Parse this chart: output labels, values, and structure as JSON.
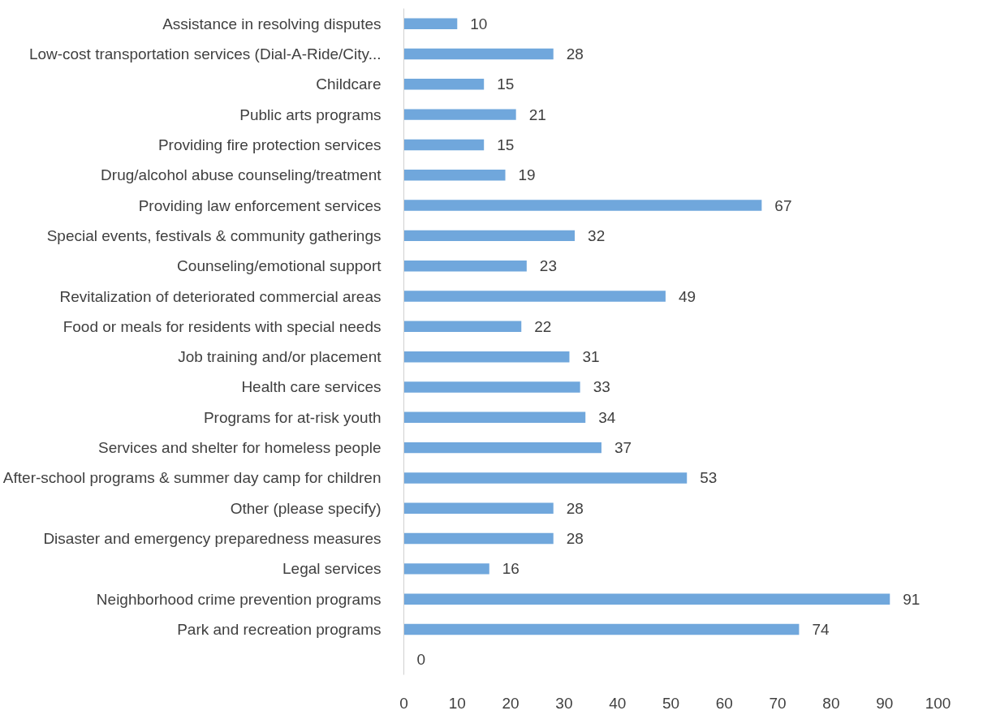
{
  "chart_data": {
    "type": "bar",
    "orientation": "horizontal",
    "categories": [
      "Assistance in resolving disputes",
      "Low-cost transportation services (Dial-A-Ride/City...",
      "Childcare",
      "Public arts programs",
      "Providing fire protection services",
      "Drug/alcohol abuse counseling/treatment",
      "Providing law enforcement services",
      "Special events, festivals & community gatherings",
      "Counseling/emotional support",
      "Revitalization of deteriorated commercial areas",
      "Food or meals for residents with special needs",
      "Job training and/or placement",
      "Health care services",
      "Programs for at-risk youth",
      "Services and shelter for homeless people",
      "After-school programs & summer day camp for children",
      "Other (please specify)",
      "Disaster and emergency preparedness measures",
      "Legal services",
      "Neighborhood crime prevention programs",
      "Park and recreation programs",
      null
    ],
    "values": [
      10,
      28,
      15,
      21,
      15,
      19,
      67,
      32,
      23,
      49,
      22,
      31,
      33,
      34,
      37,
      53,
      28,
      28,
      16,
      91,
      74,
      0
    ],
    "color": "#70a7dc",
    "xlim": [
      0,
      100
    ],
    "xticks": [
      0,
      10,
      20,
      30,
      40,
      50,
      60,
      70,
      80,
      90,
      100
    ],
    "data_labels": true,
    "grid": false
  }
}
